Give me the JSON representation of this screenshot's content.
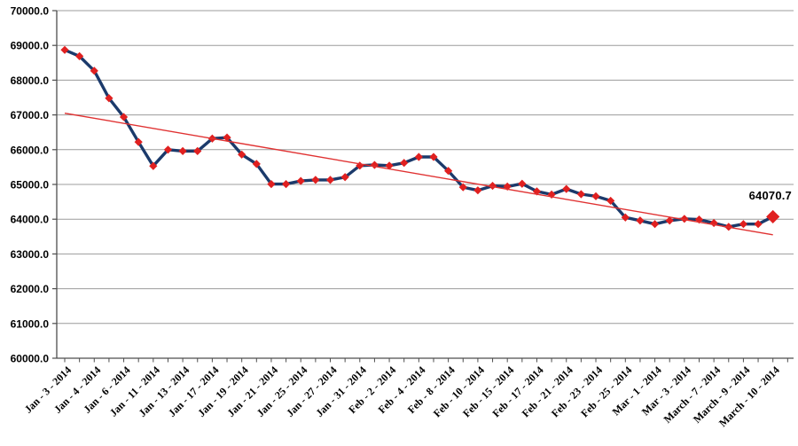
{
  "chart_data": {
    "type": "line",
    "title": "",
    "xlabel": "",
    "ylabel": "",
    "legend": "none",
    "grid": "horizontal",
    "n_points": 49,
    "series": [
      {
        "name": "daily-value-series",
        "values": [
          68870,
          68690,
          68270,
          67480,
          66940,
          66220,
          65530,
          66000,
          65960,
          65960,
          66320,
          66350,
          65860,
          65590,
          65010,
          65010,
          65100,
          65130,
          65130,
          65210,
          65540,
          65560,
          65540,
          65620,
          65790,
          65790,
          65390,
          64920,
          64830,
          64960,
          64940,
          65020,
          64800,
          64710,
          64870,
          64720,
          64660,
          64530,
          64050,
          63960,
          63860,
          63960,
          64010,
          63990,
          63890,
          63780,
          63860,
          63860,
          64070.7
        ]
      }
    ],
    "x_tick_labels": [
      "Jan - 3 - 2014",
      "Jan - 4 - 2014",
      "Jan - 6 - 2014",
      "Jan - 11 - 2014",
      "Jan - 13 - 2014",
      "Jan - 17 - 2014",
      "Jan - 19 - 2014",
      "Jan - 21 - 2014",
      "Jan - 25 - 2014",
      "Jan - 27 - 2014",
      "Jan - 31 - 2014",
      "Feb - 2 - 2014",
      "Feb - 4 - 2014",
      "Feb - 8 - 2014",
      "Feb - 10 - 2014",
      "Feb - 15 - 2014",
      "Feb - 17 - 2014",
      "Feb - 21 - 2014",
      "Feb - 23 - 2014",
      "Feb - 25 - 2014",
      "Mar - 1 - 2014",
      "Mar - 3 - 2014",
      "March - 7 - 2014",
      "March - 9 - 2014",
      "March - 10 - 2014"
    ],
    "x_label_every_n_points": 2,
    "ylim": [
      60000,
      70000
    ],
    "ytick_step": 1000,
    "ytick_labels": [
      "70000.0",
      "69000.0",
      "68000.0",
      "67000.0",
      "66000.0",
      "65000.0",
      "64000.0",
      "63000.0",
      "62000.0",
      "61000.0",
      "60000.0"
    ],
    "trendline": {
      "type": "linear",
      "start_value": 67050,
      "end_value": 63550
    },
    "last_point_label": "64070.7",
    "colors": {
      "line": "#1B3A6B",
      "marker": "#E02020",
      "trendline": "#E03232",
      "gridline": "#9C9C9C",
      "axis": "#4D4D4D",
      "tick_label": "#000000",
      "background": "#FFFFFF"
    }
  }
}
